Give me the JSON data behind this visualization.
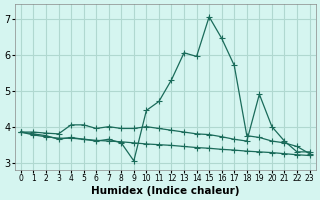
{
  "title": "",
  "xlabel": "Humidex (Indice chaleur)",
  "ylabel": "",
  "background_color": "#d5f5f0",
  "grid_color": "#b0d8d0",
  "line_color": "#1a6b5a",
  "marker_color": "#1a6b5a",
  "xlim": [
    -0.5,
    23.5
  ],
  "ylim": [
    2.8,
    7.4
  ],
  "yticks": [
    3,
    4,
    5,
    6,
    7
  ],
  "xtick_labels": [
    "0",
    "1",
    "2",
    "3",
    "4",
    "5",
    "6",
    "7",
    "8",
    "9",
    "10",
    "11",
    "12",
    "13",
    "14",
    "15",
    "16",
    "17",
    "18",
    "19",
    "20",
    "21",
    "22",
    "23"
  ],
  "series1": [
    3.85,
    3.8,
    3.75,
    3.65,
    3.7,
    3.65,
    3.6,
    3.65,
    3.55,
    3.05,
    4.45,
    4.7,
    5.3,
    6.05,
    5.95,
    7.05,
    6.45,
    5.7,
    3.75,
    3.7,
    3.6,
    3.55,
    3.45,
    3.25
  ],
  "series2": [
    3.85,
    3.85,
    3.82,
    3.8,
    4.05,
    4.05,
    3.95,
    4.0,
    3.95,
    3.95,
    4.0,
    3.95,
    3.9,
    3.85,
    3.8,
    3.78,
    3.72,
    3.65,
    3.6,
    4.9,
    4.0,
    3.6,
    3.3,
    3.3
  ],
  "series3": [
    3.85,
    3.77,
    3.72,
    3.68,
    3.68,
    3.65,
    3.62,
    3.6,
    3.58,
    3.55,
    3.52,
    3.5,
    3.48,
    3.45,
    3.42,
    3.4,
    3.37,
    3.35,
    3.32,
    3.3,
    3.28,
    3.25,
    3.22,
    3.2
  ]
}
